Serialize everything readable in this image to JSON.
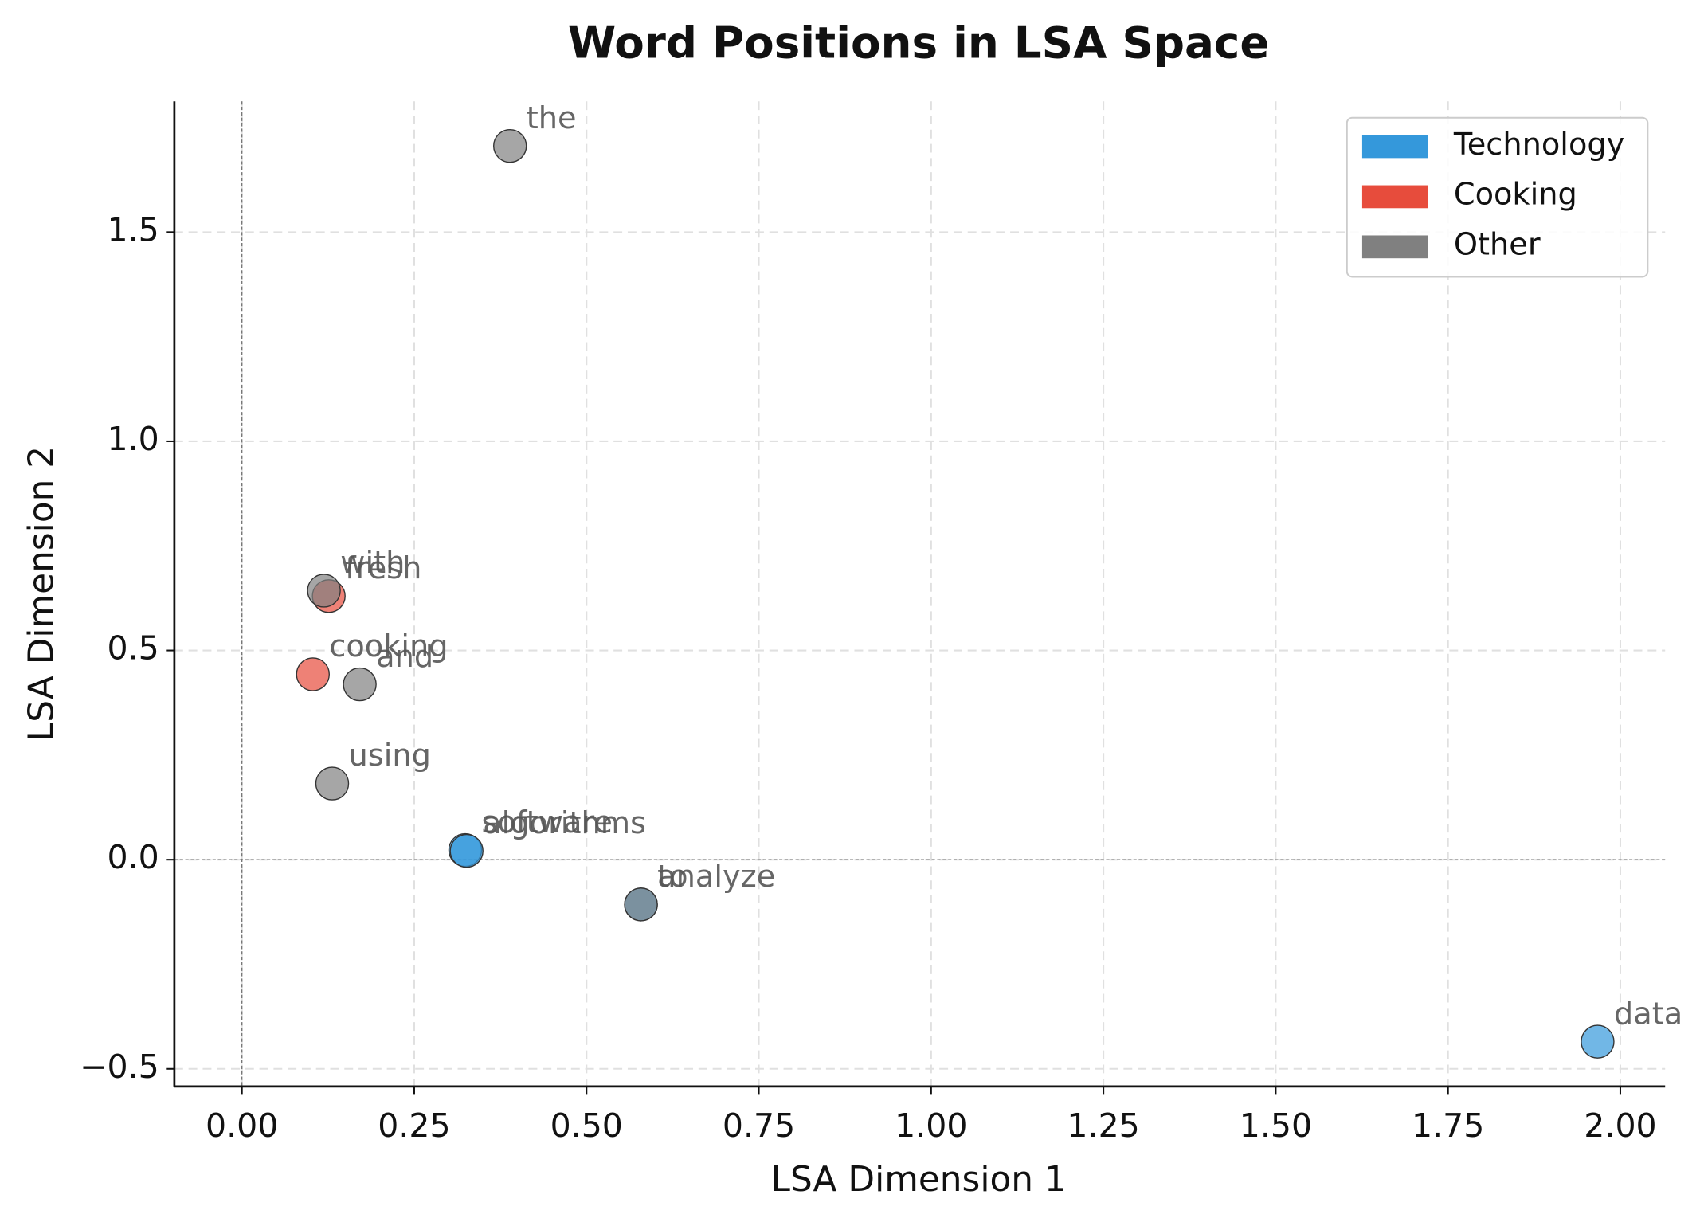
{
  "chart_data": {
    "type": "scatter",
    "title": "Word Positions in LSA Space",
    "x_label": "LSA Dimension 1",
    "y_label": "LSA Dimension 2",
    "xlim": [
      -0.098,
      2.065
    ],
    "ylim": [
      -0.542,
      1.8125
    ],
    "xticks": [
      {
        "value": 0,
        "label": "0.00"
      },
      {
        "value": 0.25,
        "label": "0.25"
      },
      {
        "value": 0.5,
        "label": "0.50"
      },
      {
        "value": 0.75,
        "label": "0.75"
      },
      {
        "value": 1,
        "label": "1.00"
      },
      {
        "value": 1.25,
        "label": "1.25"
      },
      {
        "value": 1.5,
        "label": "1.50"
      },
      {
        "value": 1.75,
        "label": "1.75"
      },
      {
        "value": 2,
        "label": "2.00"
      }
    ],
    "yticks": [
      {
        "value": -0.5,
        "label": "−0.5"
      },
      {
        "value": 0,
        "label": "0.0"
      },
      {
        "value": 0.5,
        "label": "0.5"
      },
      {
        "value": 1,
        "label": "1.0"
      },
      {
        "value": 1.5,
        "label": "1.5"
      }
    ],
    "grid": true,
    "legend": "upper right",
    "series": [
      {
        "name": "Technology",
        "color": "#3498db",
        "labels": [
          "software",
          "algorithms",
          "analyze",
          "data"
        ],
        "x": [
          0.324,
          0.326,
          0.579,
          1.967
        ],
        "values": [
          0.023,
          0.021,
          -0.107,
          -0.435
        ]
      },
      {
        "name": "Cooking",
        "color": "#e74c3c",
        "labels": [
          "fresh",
          "cooking"
        ],
        "x": [
          0.126,
          0.103
        ],
        "values": [
          0.63,
          0.443
        ]
      },
      {
        "name": "Other",
        "color": "#808080",
        "labels": [
          "the",
          "with",
          "and",
          "using",
          "to"
        ],
        "x": [
          0.389,
          0.119,
          0.171,
          0.131,
          0.579
        ],
        "values": [
          1.706,
          0.643,
          0.419,
          0.182,
          -0.107
        ]
      }
    ]
  }
}
